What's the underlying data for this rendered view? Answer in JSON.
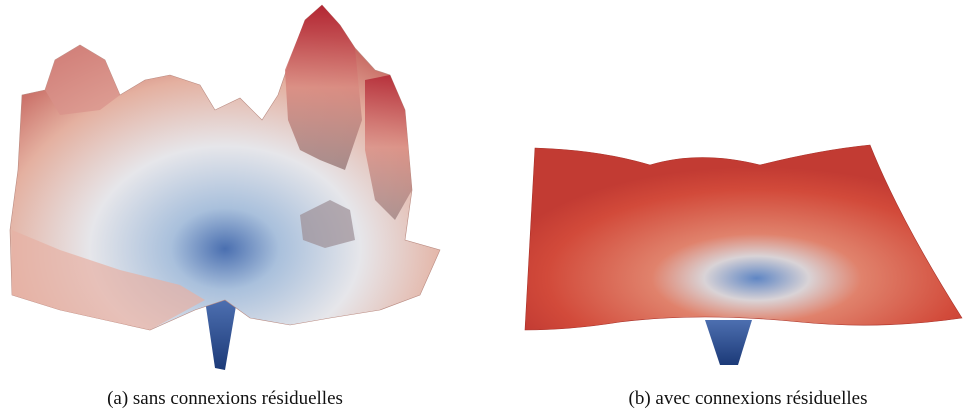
{
  "figures": [
    {
      "caption": "(a) sans connexions résiduelles"
    },
    {
      "caption": "(b) avec connexions résiduelles"
    }
  ]
}
